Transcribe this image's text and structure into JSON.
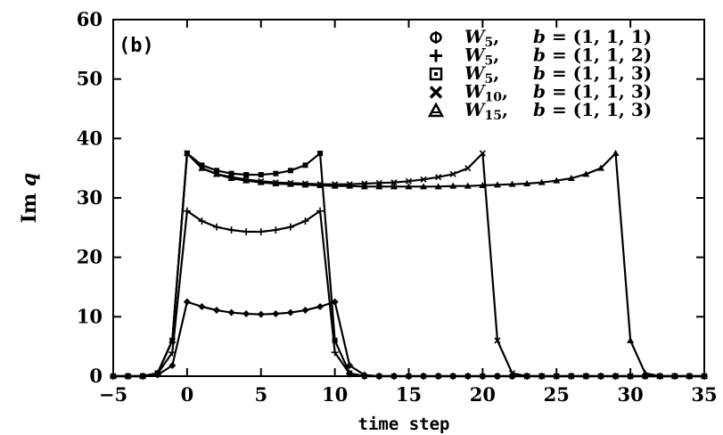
{
  "chart_data": {
    "type": "line",
    "panel_label": "(b)",
    "xlabel": "time step",
    "ylabel_text": "Im",
    "ylabel_var": "q",
    "xlim": [
      -5,
      35
    ],
    "ylim": [
      0,
      60
    ],
    "xticks": [
      -5,
      0,
      5,
      10,
      15,
      20,
      25,
      30,
      35
    ],
    "yticks": [
      0,
      10,
      20,
      30,
      40,
      50,
      60
    ],
    "grid": false,
    "legend_position": "top-right",
    "series": [
      {
        "name": "W5, b = (1, 1, 1)",
        "legend_symbol": "W",
        "legend_sub": "5",
        "legend_b": "= (1, 1, 1)",
        "marker": "diamond",
        "x": [
          -5,
          -4,
          -3,
          -2,
          -1,
          0,
          1,
          2,
          3,
          4,
          5,
          6,
          7,
          8,
          9,
          10,
          11,
          12,
          13,
          14,
          15,
          16,
          17,
          18,
          19,
          20,
          21,
          22,
          23,
          24,
          25,
          26,
          27,
          28,
          29,
          30,
          31,
          32,
          33,
          34,
          35
        ],
        "y": [
          0,
          0,
          0,
          0.2,
          1.8,
          12.5,
          11.7,
          11.1,
          10.7,
          10.5,
          10.4,
          10.5,
          10.7,
          11.1,
          11.7,
          12.5,
          1.8,
          0.2,
          0,
          0,
          0,
          0,
          0,
          0,
          0,
          0,
          0,
          0,
          0,
          0,
          0,
          0,
          0,
          0,
          0,
          0,
          0,
          0,
          0,
          0,
          0
        ]
      },
      {
        "name": "W5, b = (1, 1, 2)",
        "legend_symbol": "W",
        "legend_sub": "5",
        "legend_b": "= (1, 1, 2)",
        "marker": "plus",
        "x": [
          -5,
          -4,
          -3,
          -2,
          -1,
          0,
          1,
          2,
          3,
          4,
          5,
          6,
          7,
          8,
          9,
          10,
          11,
          12,
          13,
          14,
          15,
          16,
          17,
          18,
          19,
          20,
          21,
          22,
          23,
          24,
          25,
          26,
          27,
          28,
          29,
          30,
          31,
          32,
          33,
          34,
          35
        ],
        "y": [
          0,
          0,
          0,
          0.4,
          4,
          27.8,
          26.1,
          25.1,
          24.6,
          24.3,
          24.3,
          24.6,
          25.1,
          26.1,
          27.8,
          4,
          0.4,
          0,
          0,
          0,
          0,
          0,
          0,
          0,
          0,
          0,
          0,
          0,
          0,
          0,
          0,
          0,
          0,
          0,
          0,
          0,
          0,
          0,
          0,
          0,
          0
        ]
      },
      {
        "name": "W5, b = (1, 1, 3)",
        "legend_symbol": "W",
        "legend_sub": "5",
        "legend_b": "= (1, 1, 3)",
        "marker": "square",
        "x": [
          -5,
          -4,
          -3,
          -2,
          -1,
          0,
          1,
          2,
          3,
          4,
          5,
          6,
          7,
          8,
          9,
          10,
          11,
          12,
          13,
          14,
          15,
          16,
          17,
          18,
          19,
          20,
          21,
          22,
          23,
          24,
          25,
          26,
          27,
          28,
          29,
          30,
          31,
          32,
          33,
          34,
          35
        ],
        "y": [
          0,
          0,
          0,
          0.5,
          6,
          37.5,
          35.5,
          34.6,
          34.1,
          33.9,
          33.9,
          34.1,
          34.6,
          35.5,
          37.5,
          6,
          0.5,
          0,
          0,
          0,
          0,
          0,
          0,
          0,
          0,
          0,
          0,
          0,
          0,
          0,
          0,
          0,
          0,
          0,
          0,
          0,
          0,
          0,
          0,
          0,
          0
        ]
      },
      {
        "name": "W10, b = (1, 1, 3)",
        "legend_symbol": "W",
        "legend_sub": "10",
        "legend_b": "= (1, 1, 3)",
        "marker": "cross",
        "x": [
          -5,
          -4,
          -3,
          -2,
          -1,
          0,
          1,
          2,
          3,
          4,
          5,
          6,
          7,
          8,
          9,
          10,
          11,
          12,
          13,
          14,
          15,
          16,
          17,
          18,
          19,
          20,
          21,
          22,
          23,
          24,
          25,
          26,
          27,
          28,
          29,
          30,
          31,
          32,
          33,
          34,
          35
        ],
        "y": [
          0,
          0,
          0,
          0.5,
          6,
          37.5,
          35,
          34,
          33.5,
          33.1,
          32.8,
          32.6,
          32.5,
          32.4,
          32.3,
          32.3,
          32.3,
          32.4,
          32.5,
          32.6,
          32.8,
          33.1,
          33.5,
          34,
          35,
          37.5,
          6,
          0.5,
          0,
          0,
          0,
          0,
          0,
          0,
          0,
          0,
          0,
          0,
          0,
          0,
          0
        ]
      },
      {
        "name": "W15, b = (1, 1, 3)",
        "legend_symbol": "W",
        "legend_sub": "15",
        "legend_b": "= (1, 1, 3)",
        "marker": "triangle",
        "x": [
          -5,
          -4,
          -3,
          -2,
          -1,
          0,
          1,
          2,
          3,
          4,
          5,
          6,
          7,
          8,
          9,
          10,
          11,
          12,
          13,
          14,
          15,
          16,
          17,
          18,
          19,
          20,
          21,
          22,
          23,
          24,
          25,
          26,
          27,
          28,
          29,
          30,
          31,
          32,
          33,
          34,
          35
        ],
        "y": [
          0,
          0,
          0,
          0.5,
          6,
          37.5,
          35,
          34,
          33.3,
          32.9,
          32.6,
          32.4,
          32.3,
          32.2,
          32.1,
          32,
          32,
          31.9,
          31.9,
          31.9,
          31.9,
          31.9,
          31.9,
          32,
          32,
          32.1,
          32.2,
          32.3,
          32.4,
          32.6,
          32.9,
          33.3,
          34,
          35,
          37.5,
          6,
          0.5,
          0,
          0,
          0,
          0
        ]
      }
    ]
  }
}
